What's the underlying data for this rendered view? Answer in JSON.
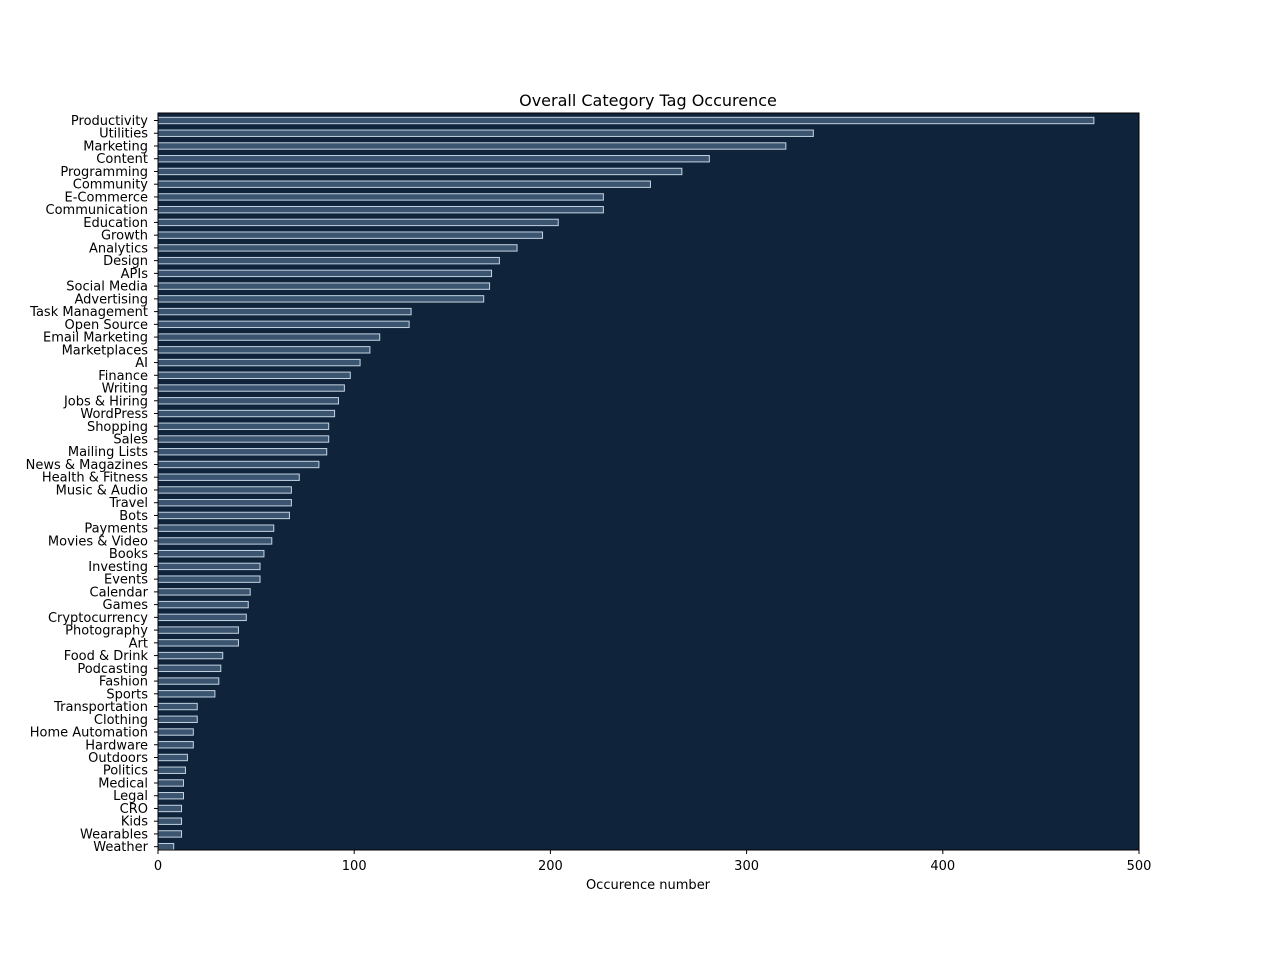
{
  "chart_data": {
    "type": "bar",
    "orientation": "horizontal",
    "title": "Overall Category Tag Occurence",
    "xlabel": "Occurence number",
    "ylabel": "",
    "xlim": [
      0,
      500
    ],
    "xticks": [
      0,
      100,
      200,
      300,
      400,
      500
    ],
    "grid": false,
    "legend": "none",
    "colors": {
      "plot_background": "#0f243b",
      "bar_fill": "#3b5570",
      "bar_edge": "#c4d3e2"
    },
    "categories": [
      "Productivity",
      "Utilities",
      "Marketing",
      "Content",
      "Programming",
      "Community",
      "E-Commerce",
      "Communication",
      "Education",
      "Growth",
      "Analytics",
      "Design",
      "APIs",
      "Social Media",
      "Advertising",
      "Task Management",
      "Open Source",
      "Email Marketing",
      "Marketplaces",
      "AI",
      "Finance",
      "Writing",
      "Jobs & Hiring",
      "WordPress",
      "Shopping",
      "Sales",
      "Mailing Lists",
      "News & Magazines",
      "Health & Fitness",
      "Music & Audio",
      "Travel",
      "Bots",
      "Payments",
      "Movies & Video",
      "Books",
      "Investing",
      "Events",
      "Calendar",
      "Games",
      "Cryptocurrency",
      "Photography",
      "Art",
      "Food & Drink",
      "Podcasting",
      "Fashion",
      "Sports",
      "Transportation",
      "Clothing",
      "Home Automation",
      "Hardware",
      "Outdoors",
      "Politics",
      "Medical",
      "Legal",
      "CRO",
      "Kids",
      "Wearables",
      "Weather"
    ],
    "values": [
      477,
      334,
      320,
      281,
      267,
      251,
      227,
      227,
      204,
      196,
      183,
      174,
      170,
      169,
      166,
      129,
      128,
      113,
      108,
      103,
      98,
      95,
      92,
      90,
      87,
      87,
      86,
      82,
      72,
      68,
      68,
      67,
      59,
      58,
      54,
      52,
      52,
      47,
      46,
      45,
      41,
      41,
      33,
      32,
      31,
      29,
      20,
      20,
      18,
      18,
      15,
      14,
      13,
      13,
      12,
      12,
      12,
      8
    ]
  }
}
